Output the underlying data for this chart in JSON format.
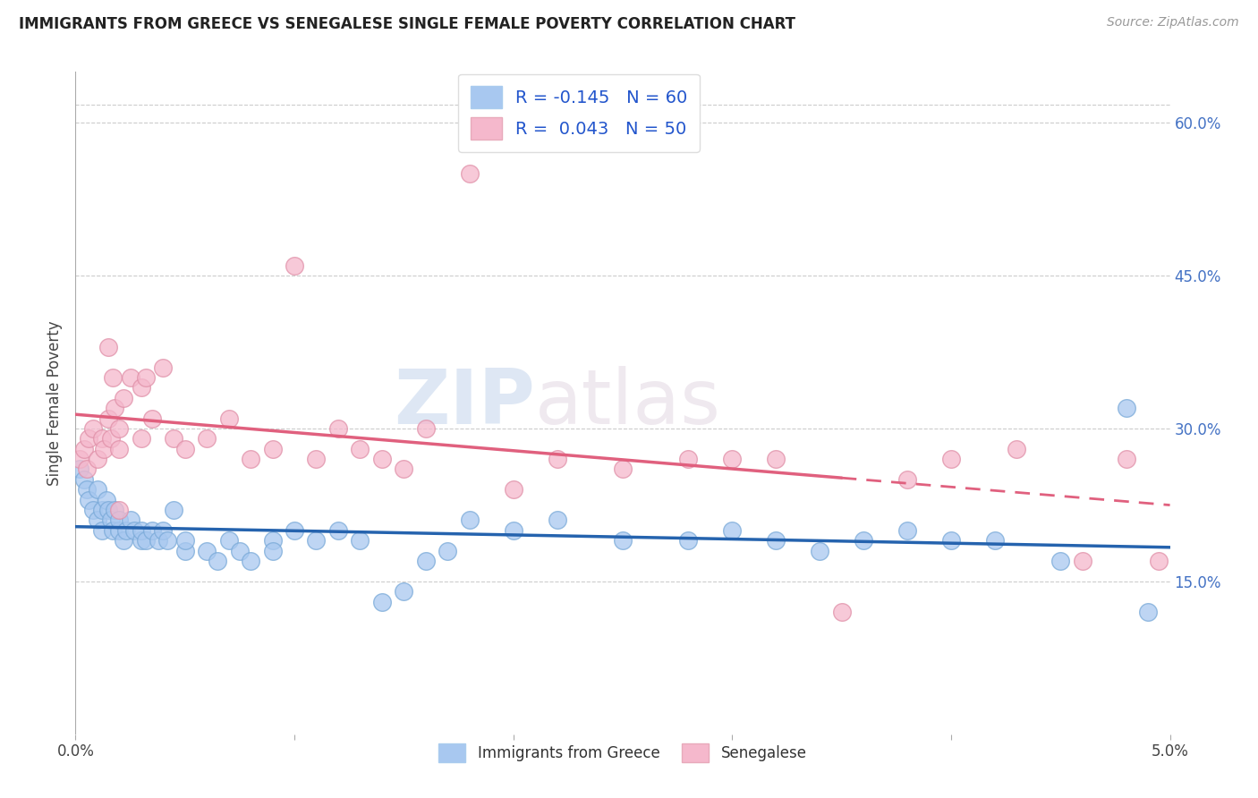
{
  "title": "IMMIGRANTS FROM GREECE VS SENEGALESE SINGLE FEMALE POVERTY CORRELATION CHART",
  "source": "Source: ZipAtlas.com",
  "ylabel": "Single Female Poverty",
  "right_yticks": [
    "60.0%",
    "45.0%",
    "30.0%",
    "15.0%"
  ],
  "right_ytick_vals": [
    0.6,
    0.45,
    0.3,
    0.15
  ],
  "xlim": [
    0.0,
    0.05
  ],
  "ylim": [
    0.0,
    0.65
  ],
  "blue_color": "#a8c8f0",
  "pink_color": "#f5b8cc",
  "blue_line_color": "#2563ae",
  "pink_line_color": "#e0607e",
  "watermark_zip": "ZIP",
  "watermark_atlas": "atlas",
  "greece_x": [
    0.0002,
    0.0004,
    0.0005,
    0.0006,
    0.0008,
    0.001,
    0.001,
    0.0012,
    0.0012,
    0.0014,
    0.0015,
    0.0016,
    0.0017,
    0.0018,
    0.002,
    0.002,
    0.0022,
    0.0023,
    0.0025,
    0.0027,
    0.003,
    0.003,
    0.0032,
    0.0035,
    0.0038,
    0.004,
    0.0042,
    0.0045,
    0.005,
    0.005,
    0.006,
    0.0065,
    0.007,
    0.0075,
    0.008,
    0.009,
    0.009,
    0.01,
    0.011,
    0.012,
    0.013,
    0.014,
    0.015,
    0.016,
    0.017,
    0.018,
    0.02,
    0.022,
    0.025,
    0.028,
    0.03,
    0.032,
    0.034,
    0.036,
    0.038,
    0.04,
    0.042,
    0.045,
    0.048,
    0.049
  ],
  "greece_y": [
    0.26,
    0.25,
    0.24,
    0.23,
    0.22,
    0.24,
    0.21,
    0.22,
    0.2,
    0.23,
    0.22,
    0.21,
    0.2,
    0.22,
    0.2,
    0.21,
    0.19,
    0.2,
    0.21,
    0.2,
    0.19,
    0.2,
    0.19,
    0.2,
    0.19,
    0.2,
    0.19,
    0.22,
    0.18,
    0.19,
    0.18,
    0.17,
    0.19,
    0.18,
    0.17,
    0.19,
    0.18,
    0.2,
    0.19,
    0.2,
    0.19,
    0.13,
    0.14,
    0.17,
    0.18,
    0.21,
    0.2,
    0.21,
    0.19,
    0.19,
    0.2,
    0.19,
    0.18,
    0.19,
    0.2,
    0.19,
    0.19,
    0.17,
    0.32,
    0.12
  ],
  "senegal_x": [
    0.0002,
    0.0004,
    0.0005,
    0.0006,
    0.0008,
    0.001,
    0.0012,
    0.0013,
    0.0015,
    0.0016,
    0.0017,
    0.0018,
    0.002,
    0.002,
    0.0022,
    0.0025,
    0.003,
    0.003,
    0.0032,
    0.0035,
    0.004,
    0.0045,
    0.005,
    0.006,
    0.007,
    0.008,
    0.009,
    0.01,
    0.011,
    0.012,
    0.013,
    0.014,
    0.015,
    0.016,
    0.018,
    0.02,
    0.022,
    0.025,
    0.028,
    0.03,
    0.032,
    0.035,
    0.038,
    0.04,
    0.043,
    0.046,
    0.048,
    0.0495,
    0.0015,
    0.002
  ],
  "senegal_y": [
    0.27,
    0.28,
    0.26,
    0.29,
    0.3,
    0.27,
    0.29,
    0.28,
    0.31,
    0.29,
    0.35,
    0.32,
    0.3,
    0.28,
    0.33,
    0.35,
    0.29,
    0.34,
    0.35,
    0.31,
    0.36,
    0.29,
    0.28,
    0.29,
    0.31,
    0.27,
    0.28,
    0.46,
    0.27,
    0.3,
    0.28,
    0.27,
    0.26,
    0.3,
    0.55,
    0.24,
    0.27,
    0.26,
    0.27,
    0.27,
    0.27,
    0.12,
    0.25,
    0.27,
    0.28,
    0.17,
    0.27,
    0.17,
    0.38,
    0.22
  ]
}
